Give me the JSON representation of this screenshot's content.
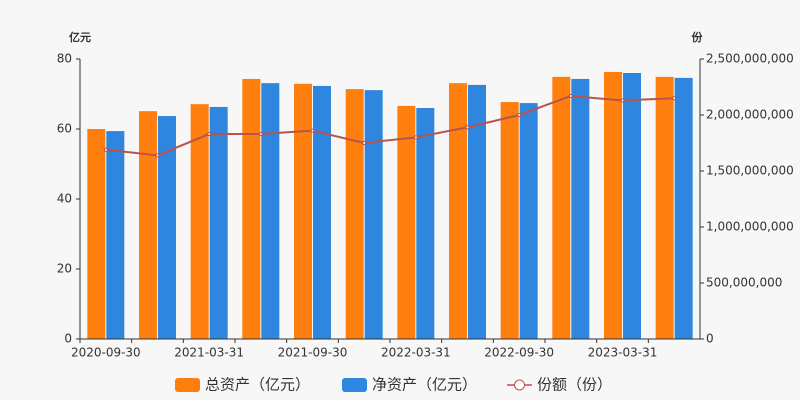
{
  "chart_data": {
    "type": "bar",
    "y_label": "亿元",
    "y2_label": "份",
    "categories": [
      "2020-09-30",
      null,
      "2021-03-31",
      null,
      "2021-09-30",
      null,
      "2022-03-31",
      null,
      "2022-09-30",
      null,
      "2023-03-31",
      null
    ],
    "series": [
      {
        "name": "总资产（亿元）",
        "type": "bar",
        "color": "#ff7f0e",
        "values": [
          60.0,
          65.1,
          67.1,
          74.3,
          72.9,
          71.4,
          66.6,
          73.1,
          67.7,
          74.9,
          76.3,
          74.9
        ]
      },
      {
        "name": "净资产（亿元）",
        "type": "bar",
        "color": "#2e86de",
        "values": [
          59.4,
          63.7,
          66.3,
          73.1,
          72.3,
          71.1,
          66.0,
          72.6,
          67.4,
          74.3,
          76.0,
          74.6
        ]
      },
      {
        "name": "份额（份）",
        "type": "line",
        "axis": "y2",
        "color": "#b9534b",
        "values": [
          1690000000,
          1640000000,
          1830000000,
          1830000000,
          1860000000,
          1750000000,
          1800000000,
          1890000000,
          2000000000,
          2170000000,
          2130000000,
          2150000000
        ]
      }
    ],
    "ylim": [
      0,
      80
    ],
    "yticks": [
      0,
      20,
      40,
      60,
      80
    ],
    "y2lim": [
      0,
      2500000000
    ],
    "y2ticks": [
      0,
      {
        "value": 500000000,
        "label": "500,000,000"
      },
      {
        "value": 1000000000,
        "label": "1,000,000,000"
      },
      {
        "value": 1500000000,
        "label": "1,500,000,000"
      },
      {
        "value": 2000000000,
        "label": "2,000,000,000"
      },
      {
        "value": 2500000000,
        "label": "2,500,000,000"
      }
    ],
    "grid": false,
    "legend": "bottom"
  }
}
